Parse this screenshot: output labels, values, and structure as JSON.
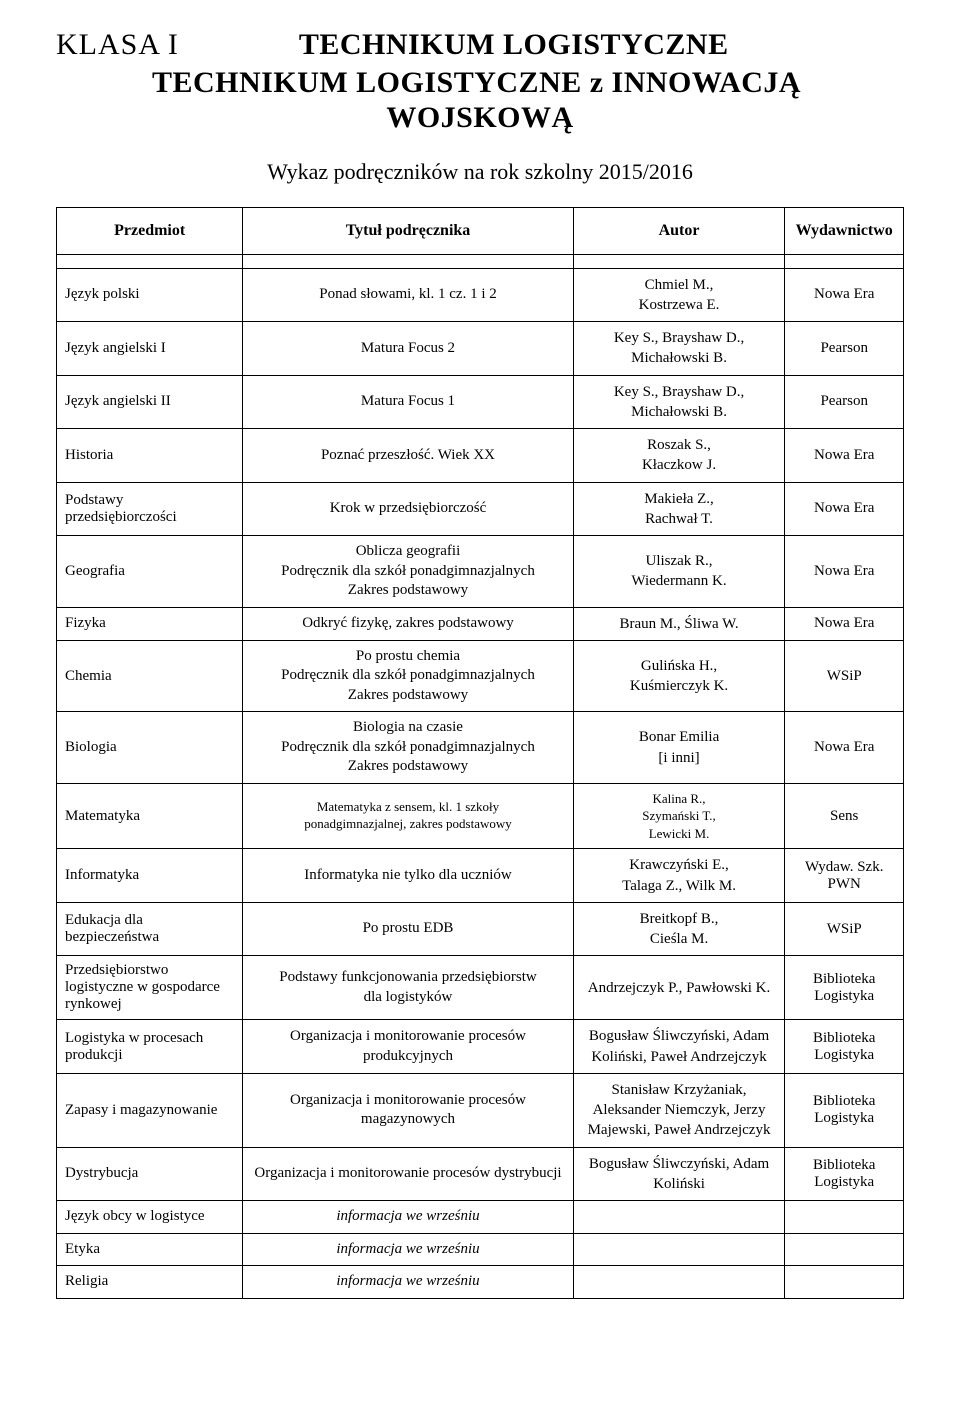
{
  "header": {
    "klasa": "KLASA I",
    "title1": "TECHNIKUM LOGISTYCZNE",
    "title2": "TECHNIKUM LOGISTYCZNE z INNOWACJĄ",
    "title3": "WOJSKOWĄ",
    "subhead": "Wykaz podręczników na rok szkolny 2015/2016"
  },
  "columns": [
    "Przedmiot",
    "Tytuł podręcznika",
    "Autor",
    "Wydawnictwo"
  ],
  "rows": [
    {
      "subject": "Język polski",
      "title": "Ponad słowami, kl. 1 cz. 1 i 2",
      "author": "Chmiel M.,\nKostrzewa E.",
      "publisher": "Nowa Era"
    },
    {
      "subject": "Język angielski I",
      "title": "Matura Focus 2",
      "author": "Key S., Brayshaw D.,\nMichałowski B.",
      "publisher": "Pearson"
    },
    {
      "subject": "Język angielski II",
      "title": "Matura Focus 1",
      "author": "Key S., Brayshaw D.,\nMichałowski B.",
      "publisher": "Pearson"
    },
    {
      "subject": "Historia",
      "title": "Poznać przeszłość. Wiek XX",
      "author": "Roszak S.,\nKłaczkow J.",
      "publisher": "Nowa Era"
    },
    {
      "subject": "Podstawy\nprzedsiębiorczości",
      "title": "Krok w przedsiębiorczość",
      "author": "Makieła Z.,\nRachwał T.",
      "publisher": "Nowa Era"
    },
    {
      "subject": "Geografia",
      "title": "Oblicza geografii\nPodręcznik dla szkół ponadgimnazjalnych\nZakres podstawowy",
      "author": "Uliszak R.,\nWiedermann K.",
      "publisher": "Nowa Era"
    },
    {
      "subject": "Fizyka",
      "title": "Odkryć fizykę, zakres podstawowy",
      "author": "Braun M., Śliwa W.",
      "publisher": "Nowa Era"
    },
    {
      "subject": "Chemia",
      "title": "Po prostu chemia\nPodręcznik dla szkół ponadgimnazjalnych\nZakres podstawowy",
      "author": "Gulińska H.,\nKuśmierczyk K.",
      "publisher": "WSiP"
    },
    {
      "subject": "Biologia",
      "title": "Biologia na czasie\nPodręcznik dla szkół ponadgimnazjalnych\nZakres podstawowy",
      "author": "Bonar Emilia\n[i inni]",
      "publisher": "Nowa Era"
    },
    {
      "subject": "Matematyka",
      "title": "Matematyka z sensem, kl. 1 szkoły\nponadgimnazjalnej, zakres podstawowy",
      "author": "Kalina R.,\nSzymański T.,\nLewicki M.",
      "publisher": "Sens",
      "title_small": true,
      "author_small": true
    },
    {
      "subject": "Informatyka",
      "title": "Informatyka nie tylko dla uczniów",
      "author": "Krawczyński E.,\nTalaga Z., Wilk  M.",
      "publisher": "Wydaw. Szk.\nPWN"
    },
    {
      "subject": "Edukacja dla\nbezpieczeństwa",
      "title": "Po prostu EDB",
      "author": "Breitkopf B.,\nCieśla M.",
      "publisher": "WSiP"
    },
    {
      "subject": "Przedsiębiorstwo\nlogistyczne w gospodarce\nrynkowej",
      "title": "Podstawy funkcjonowania przedsiębiorstw\ndla logistyków",
      "author": "Andrzejczyk P., Pawłowski K.",
      "publisher": "Biblioteka\nLogistyka"
    },
    {
      "subject": "Logistyka w procesach\nprodukcji",
      "title": "Organizacja i monitorowanie procesów produkcyjnych",
      "author": "Bogusław Śliwczyński, Adam\nKoliński, Paweł Andrzejczyk",
      "publisher": "Biblioteka\nLogistyka"
    },
    {
      "subject": "Zapasy i magazynowanie",
      "title": "Organizacja i monitorowanie procesów magazynowych",
      "author": "Stanisław Krzyżaniak,\nAleksander Niemczyk, Jerzy\nMajewski, Paweł Andrzejczyk",
      "publisher": "Biblioteka\nLogistyka"
    },
    {
      "subject": "Dystrybucja",
      "title": "Organizacja i monitorowanie procesów dystrybucji",
      "author": "Bogusław Śliwczyński, Adam\nKoliński",
      "publisher": "Biblioteka\nLogistyka"
    },
    {
      "subject": "Język obcy w logistyce",
      "title": "informacja we wrześniu",
      "author": "",
      "publisher": "",
      "italic_title": true
    },
    {
      "subject": "Etyka",
      "title": "informacja we wrześniu",
      "author": "",
      "publisher": "",
      "italic_title": true
    },
    {
      "subject": "Religia",
      "title": "informacja we wrześniu",
      "author": "",
      "publisher": "",
      "italic_title": true
    }
  ],
  "style": {
    "background_color": "#ffffff",
    "text_color": "#000000",
    "border_color": "#000000",
    "font_family": "Times New Roman",
    "header_fontsize": 30,
    "subhead_fontsize": 22,
    "th_fontsize": 16,
    "td_fontsize": 15,
    "small_fontsize": 13
  }
}
